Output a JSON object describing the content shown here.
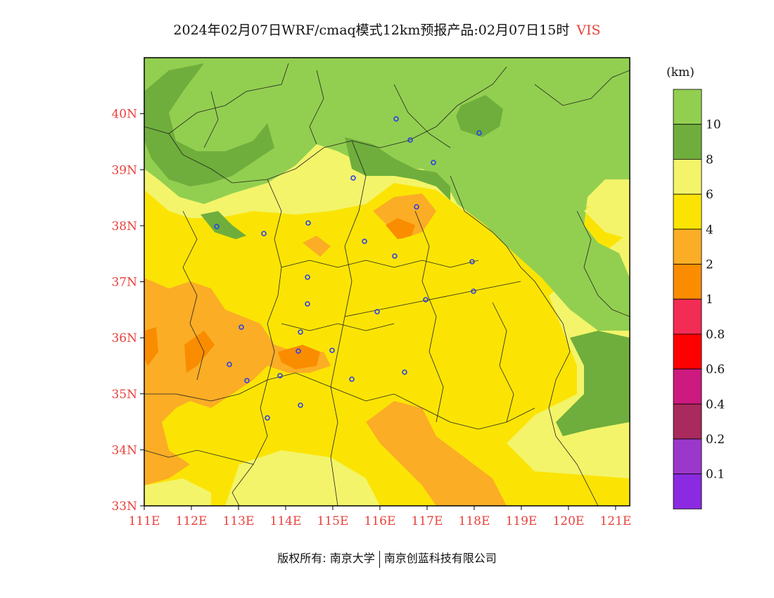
{
  "title": {
    "text": "2024年02月07日WRF/cmaq模式12km预报产品:02月07日15时",
    "variable": "VIS"
  },
  "map": {
    "lat_labels": [
      "40N",
      "39N",
      "38N",
      "37N",
      "36N",
      "35N",
      "34N",
      "33N"
    ],
    "lon_labels": [
      "111E",
      "112E",
      "113E",
      "114E",
      "115E",
      "116E",
      "117E",
      "118E",
      "119E",
      "120E",
      "121E"
    ],
    "lat_range": [
      33,
      41
    ],
    "lon_range": [
      111,
      121.3
    ]
  },
  "colorbar": {
    "unit": "(km)",
    "labels": [
      "10",
      "8",
      "6",
      "4",
      "2",
      "1",
      "0.8",
      "0.6",
      "0.4",
      "0.2",
      "0.1"
    ],
    "colors": [
      "#92cf50",
      "#6fae3c",
      "#f3f46a",
      "#fbe404",
      "#fbad25",
      "#fa8c00",
      "#f22c55",
      "#ff0000",
      "#cc1a7f",
      "#a92a5c",
      "#9b38cb",
      "#8b2ae0"
    ]
  },
  "footer": {
    "left": "版权所有: 南京大学",
    "right": "南京创蓝科技有限公司"
  }
}
